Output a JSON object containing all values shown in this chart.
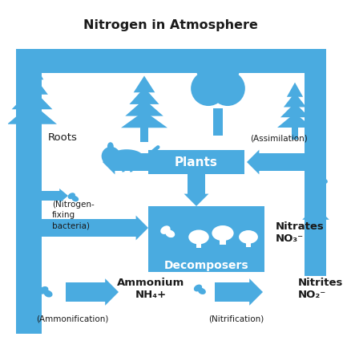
{
  "title": "Nitrogen in Atmosphere",
  "background_color": "#ffffff",
  "blue": "#4aabe0",
  "text_color": "#1a1a1a",
  "labels": {
    "roots": "Roots",
    "nitrogen_fixing": "(Nitrogen-\nfixing\nbacteria)",
    "plants": "Plants",
    "assimilation": "(Assimilation)",
    "decomposers": "Decomposers",
    "nitrates": "Nitrates\nNO₃⁻",
    "nitrites": "Nitrites\nNO₂⁻",
    "ammonium": "Ammonium\nNH₄+",
    "ammonification": "(Ammonification)",
    "nitrification": "(Nitrification)"
  }
}
